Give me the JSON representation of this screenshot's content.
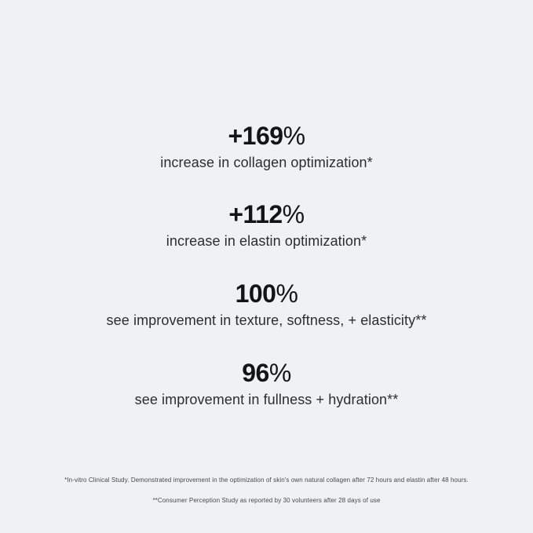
{
  "page": {
    "background_color": "#f0f1f2",
    "number_color": "#141414",
    "label_color": "#2d2d2d",
    "footnote_color": "#484848"
  },
  "stats": [
    {
      "value": "+169",
      "suffix": "%",
      "label": "increase in collagen optimization*"
    },
    {
      "value": "+112",
      "suffix": "%",
      "label": "increase in elastin optimization*"
    },
    {
      "value": "100",
      "suffix": "%",
      "label": "see improvement in texture, softness, + elasticity**"
    },
    {
      "value": "96",
      "suffix": "%",
      "label": "see improvement in fullness + hydration**"
    }
  ],
  "footnotes": [
    "*In-vitro Clinical Study. Demonstrated improvement in the optimization of skin's own natural collagen after 72 hours and elastin after 48 hours.",
    "**Consumer Perception Study as reported by 30 volunteers after 28 days of use"
  ]
}
